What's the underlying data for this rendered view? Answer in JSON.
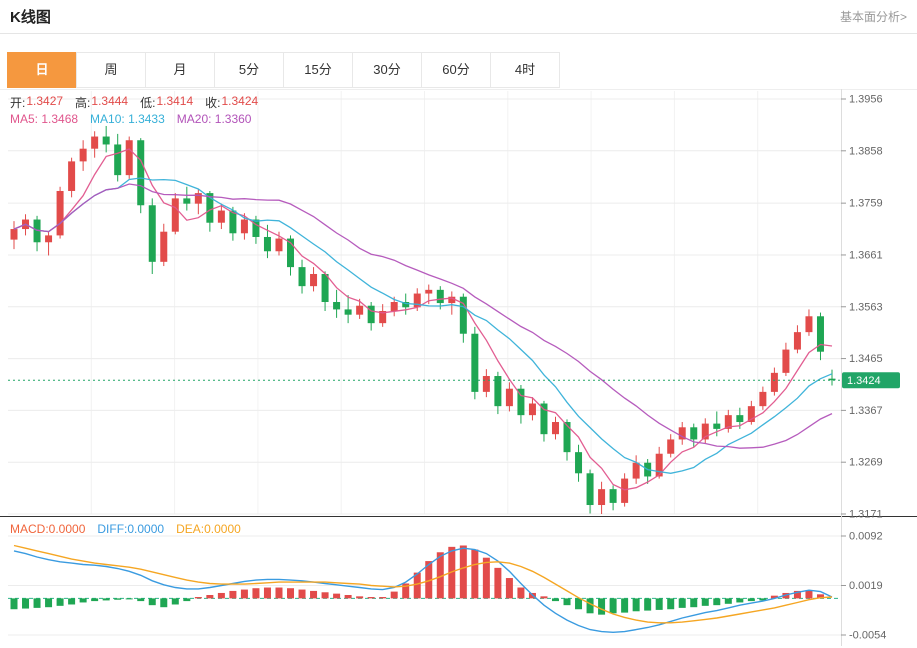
{
  "header": {
    "title": "K线图",
    "link": "基本面分析>"
  },
  "tabs": {
    "items": [
      {
        "label": "日",
        "active": true
      },
      {
        "label": "周",
        "active": false
      },
      {
        "label": "月",
        "active": false
      },
      {
        "label": "5分",
        "active": false
      },
      {
        "label": "15分",
        "active": false
      },
      {
        "label": "30分",
        "active": false
      },
      {
        "label": "60分",
        "active": false
      },
      {
        "label": "4时",
        "active": false
      }
    ]
  },
  "legend": {
    "ohlc": [
      {
        "label": "开:",
        "value": "1.3427"
      },
      {
        "label": "高:",
        "value": "1.3444"
      },
      {
        "label": "低:",
        "value": "1.3414"
      },
      {
        "label": "收:",
        "value": "1.3424"
      }
    ],
    "ma": [
      {
        "text": "MA5: 1.3468",
        "color": "#e0558c"
      },
      {
        "text": "MA10: 1.3433",
        "color": "#36b0d8"
      },
      {
        "text": "MA20: 1.3360",
        "color": "#b253b9"
      }
    ],
    "macd": [
      {
        "text": "MACD:0.0000",
        "color": "#f0653c"
      },
      {
        "text": "DIFF:0.0000",
        "color": "#3a9be0"
      },
      {
        "text": "DEA:0.0000",
        "color": "#f5a623"
      }
    ]
  },
  "colors": {
    "up": "#e24b4a",
    "down": "#1fa653",
    "tab_active_bg": "#f5983f",
    "price_line": "#21a567",
    "ma5": "#e0558c",
    "ma10": "#36b0d8",
    "ma20": "#b253b9",
    "diff_line": "#3a9be0",
    "dea_line": "#f5a623",
    "zero_line": "#2bb38a",
    "grid": "#ececec",
    "axis_text": "#666666"
  },
  "chart_data": {
    "type": "candlestick",
    "title": "K线图",
    "y_axis_ticks": [
      1.3956,
      1.3858,
      1.3759,
      1.3661,
      1.3563,
      1.3465,
      1.3367,
      1.3269,
      1.3171
    ],
    "current_price": 1.3424,
    "ohlc_display": {
      "open": 1.3427,
      "high": 1.3444,
      "low": 1.3414,
      "close": 1.3424
    },
    "ma_display": {
      "MA5": 1.3468,
      "MA10": 1.3433,
      "MA20": 1.336
    },
    "ma_periods": [
      5,
      10,
      20
    ],
    "candles": [
      [
        1.369,
        1.3725,
        1.3672,
        1.371
      ],
      [
        1.371,
        1.3738,
        1.3698,
        1.3728
      ],
      [
        1.3728,
        1.3735,
        1.3668,
        1.3685
      ],
      [
        1.3685,
        1.3705,
        1.366,
        1.3698
      ],
      [
        1.3698,
        1.379,
        1.3692,
        1.3782
      ],
      [
        1.3782,
        1.3845,
        1.377,
        1.3838
      ],
      [
        1.3838,
        1.3878,
        1.382,
        1.3862
      ],
      [
        1.3862,
        1.3895,
        1.3845,
        1.3885
      ],
      [
        1.3885,
        1.3905,
        1.3855,
        1.387
      ],
      [
        1.387,
        1.389,
        1.38,
        1.3812
      ],
      [
        1.3812,
        1.3885,
        1.3805,
        1.3878
      ],
      [
        1.3878,
        1.3882,
        1.374,
        1.3755
      ],
      [
        1.3755,
        1.3768,
        1.3625,
        1.3648
      ],
      [
        1.3648,
        1.372,
        1.364,
        1.3705
      ],
      [
        1.3705,
        1.3778,
        1.37,
        1.3768
      ],
      [
        1.3768,
        1.379,
        1.3745,
        1.3758
      ],
      [
        1.3758,
        1.3785,
        1.3738,
        1.3778
      ],
      [
        1.3778,
        1.3782,
        1.3705,
        1.3722
      ],
      [
        1.3722,
        1.3758,
        1.371,
        1.3745
      ],
      [
        1.3745,
        1.3752,
        1.3688,
        1.3702
      ],
      [
        1.3702,
        1.374,
        1.369,
        1.3728
      ],
      [
        1.3728,
        1.3735,
        1.3682,
        1.3695
      ],
      [
        1.3695,
        1.3718,
        1.3655,
        1.3668
      ],
      [
        1.3668,
        1.3705,
        1.366,
        1.3692
      ],
      [
        1.3692,
        1.3698,
        1.3622,
        1.3638
      ],
      [
        1.3638,
        1.3652,
        1.3588,
        1.3602
      ],
      [
        1.3602,
        1.3638,
        1.3592,
        1.3625
      ],
      [
        1.3625,
        1.363,
        1.3555,
        1.3572
      ],
      [
        1.3572,
        1.3595,
        1.3542,
        1.3558
      ],
      [
        1.3558,
        1.3585,
        1.3532,
        1.3548
      ],
      [
        1.3548,
        1.3578,
        1.354,
        1.3565
      ],
      [
        1.3565,
        1.3572,
        1.3518,
        1.3532
      ],
      [
        1.3532,
        1.3568,
        1.3525,
        1.3555
      ],
      [
        1.3555,
        1.3582,
        1.3545,
        1.3572
      ],
      [
        1.3572,
        1.3588,
        1.3548,
        1.3562
      ],
      [
        1.3562,
        1.3598,
        1.3555,
        1.3588
      ],
      [
        1.3588,
        1.3605,
        1.3568,
        1.3595
      ],
      [
        1.3595,
        1.3602,
        1.3558,
        1.357
      ],
      [
        1.357,
        1.3592,
        1.3548,
        1.3582
      ],
      [
        1.3582,
        1.3588,
        1.3495,
        1.3512
      ],
      [
        1.3512,
        1.3525,
        1.3388,
        1.3402
      ],
      [
        1.3402,
        1.3445,
        1.3392,
        1.3432
      ],
      [
        1.3432,
        1.344,
        1.336,
        1.3375
      ],
      [
        1.3375,
        1.342,
        1.3365,
        1.3408
      ],
      [
        1.3408,
        1.3415,
        1.3342,
        1.3358
      ],
      [
        1.3358,
        1.3392,
        1.3348,
        1.338
      ],
      [
        1.338,
        1.3385,
        1.3308,
        1.3322
      ],
      [
        1.3322,
        1.3355,
        1.3312,
        1.3345
      ],
      [
        1.3345,
        1.335,
        1.3272,
        1.3288
      ],
      [
        1.3288,
        1.3302,
        1.3232,
        1.3248
      ],
      [
        1.3248,
        1.3255,
        1.3172,
        1.3188
      ],
      [
        1.3188,
        1.3232,
        1.3171,
        1.3218
      ],
      [
        1.3218,
        1.3225,
        1.3178,
        1.3192
      ],
      [
        1.3192,
        1.3248,
        1.3185,
        1.3238
      ],
      [
        1.3238,
        1.3282,
        1.3228,
        1.3268
      ],
      [
        1.3268,
        1.3275,
        1.3228,
        1.3242
      ],
      [
        1.3242,
        1.3298,
        1.3238,
        1.3285
      ],
      [
        1.3285,
        1.3322,
        1.3278,
        1.3312
      ],
      [
        1.3312,
        1.3345,
        1.3302,
        1.3335
      ],
      [
        1.3335,
        1.3342,
        1.3298,
        1.3312
      ],
      [
        1.3312,
        1.3352,
        1.3305,
        1.3342
      ],
      [
        1.3342,
        1.3365,
        1.3318,
        1.3332
      ],
      [
        1.3332,
        1.3368,
        1.3325,
        1.3358
      ],
      [
        1.3358,
        1.3372,
        1.3332,
        1.3345
      ],
      [
        1.3345,
        1.3385,
        1.334,
        1.3375
      ],
      [
        1.3375,
        1.3412,
        1.3368,
        1.3402
      ],
      [
        1.3402,
        1.3448,
        1.3395,
        1.3438
      ],
      [
        1.3438,
        1.3495,
        1.3432,
        1.3482
      ],
      [
        1.3482,
        1.3528,
        1.3475,
        1.3515
      ],
      [
        1.3515,
        1.3558,
        1.3508,
        1.3545
      ],
      [
        1.3545,
        1.3552,
        1.3462,
        1.3478
      ],
      [
        1.3427,
        1.3444,
        1.3414,
        1.3424
      ]
    ],
    "macd_panel": {
      "axis_ticks": [
        0.0092,
        0.0019,
        -0.0054
      ],
      "display": {
        "MACD": 0.0,
        "DIFF": 0.0,
        "DEA": 0.0
      },
      "hist": [
        -0.0016,
        -0.0015,
        -0.0014,
        -0.0013,
        -0.0011,
        -0.0009,
        -0.0006,
        -0.0004,
        -0.0003,
        -0.0002,
        -0.0001,
        -0.0004,
        -0.001,
        -0.0013,
        -0.0009,
        -0.0004,
        0.0002,
        0.0005,
        0.0008,
        0.0011,
        0.0013,
        0.0015,
        0.0016,
        0.0016,
        0.0015,
        0.0013,
        0.0011,
        0.0009,
        0.0007,
        0.0005,
        0.0003,
        0.0002,
        0.0002,
        0.001,
        0.0022,
        0.0038,
        0.0055,
        0.0068,
        0.0076,
        0.0078,
        0.0072,
        0.006,
        0.0045,
        0.003,
        0.0016,
        0.0008,
        0.0003,
        -0.0004,
        -0.001,
        -0.0016,
        -0.0022,
        -0.0024,
        -0.0022,
        -0.0021,
        -0.0019,
        -0.0018,
        -0.0017,
        -0.0016,
        -0.0014,
        -0.0013,
        -0.0011,
        -0.001,
        -0.0008,
        -0.0006,
        -0.0004,
        -0.0003,
        0.0004,
        0.0008,
        0.0011,
        0.0012,
        0.0006,
        0.0
      ],
      "diff": [
        0.007,
        0.0066,
        0.0061,
        0.0057,
        0.0054,
        0.0052,
        0.005,
        0.0049,
        0.0047,
        0.0044,
        0.004,
        0.0034,
        0.0026,
        0.002,
        0.0016,
        0.0014,
        0.0014,
        0.0016,
        0.0019,
        0.0022,
        0.0025,
        0.0027,
        0.0028,
        0.0028,
        0.0027,
        0.0026,
        0.0024,
        0.0022,
        0.002,
        0.0018,
        0.0016,
        0.0014,
        0.0013,
        0.0016,
        0.0024,
        0.0036,
        0.005,
        0.0062,
        0.007,
        0.0074,
        0.0072,
        0.0066,
        0.0055,
        0.004,
        0.0022,
        0.0005,
        -0.001,
        -0.0022,
        -0.0032,
        -0.004,
        -0.0046,
        -0.0049,
        -0.005,
        -0.0049,
        -0.0046,
        -0.0043,
        -0.0039,
        -0.0034,
        -0.0029,
        -0.0025,
        -0.0021,
        -0.0018,
        -0.0014,
        -0.001,
        -0.0007,
        -0.0004,
        0.0,
        0.0005,
        0.0009,
        0.0012,
        0.001,
        0.0002
      ],
      "dea": [
        0.0078,
        0.0074,
        0.007,
        0.0066,
        0.0062,
        0.0058,
        0.0055,
        0.0052,
        0.005,
        0.0048,
        0.0046,
        0.0043,
        0.0039,
        0.0035,
        0.0031,
        0.0027,
        0.0024,
        0.0022,
        0.0021,
        0.0021,
        0.0021,
        0.0022,
        0.0023,
        0.0024,
        0.0024,
        0.0024,
        0.0024,
        0.0024,
        0.0023,
        0.0022,
        0.0021,
        0.0019,
        0.0018,
        0.0017,
        0.0018,
        0.0021,
        0.0026,
        0.0032,
        0.0039,
        0.0045,
        0.005,
        0.0053,
        0.0054,
        0.0052,
        0.0047,
        0.004,
        0.0031,
        0.0021,
        0.0011,
        0.0001,
        -0.0008,
        -0.0016,
        -0.0023,
        -0.0028,
        -0.0032,
        -0.0035,
        -0.0036,
        -0.0036,
        -0.0035,
        -0.0033,
        -0.0031,
        -0.0029,
        -0.0026,
        -0.0023,
        -0.002,
        -0.0017,
        -0.0014,
        -0.001,
        -0.0006,
        -0.0002,
        0.0001,
        0.0002
      ]
    }
  }
}
